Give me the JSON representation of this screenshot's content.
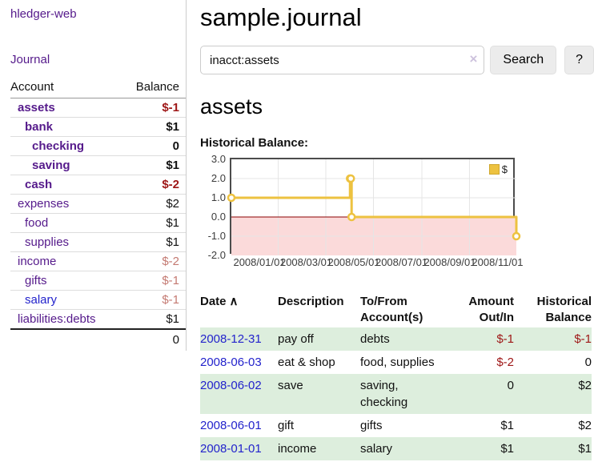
{
  "app": {
    "title": "hledger-web"
  },
  "sidebar": {
    "journal_label": "Journal",
    "accounts_header": {
      "account": "Account",
      "balance": "Balance"
    },
    "accounts": [
      {
        "name": "assets",
        "balance": "$-1"
      },
      {
        "name": "bank",
        "balance": "$1"
      },
      {
        "name": "checking",
        "balance": "0"
      },
      {
        "name": "saving",
        "balance": "$1"
      },
      {
        "name": "cash",
        "balance": "$-2"
      },
      {
        "name": "expenses",
        "balance": "$2"
      },
      {
        "name": "food",
        "balance": "$1"
      },
      {
        "name": "supplies",
        "balance": "$1"
      },
      {
        "name": "income",
        "balance": "$-2"
      },
      {
        "name": "gifts",
        "balance": "$-1"
      },
      {
        "name": "salary",
        "balance": "$-1"
      },
      {
        "name": "liabilities:debts",
        "balance": "$1"
      }
    ],
    "total": "0"
  },
  "main": {
    "title": "sample.journal",
    "search": {
      "value": "inacct:assets",
      "clear_icon": "×",
      "button_label": "Search",
      "help_label": "?"
    },
    "account_heading": "assets",
    "chart_label": "Historical Balance:"
  },
  "chart_data": {
    "type": "line",
    "step": true,
    "title": "Historical Balance:",
    "series": [
      {
        "name": "$",
        "color": "#edc240",
        "points": [
          [
            "2008-01-01",
            1
          ],
          [
            "2008-06-01",
            2
          ],
          [
            "2008-06-02",
            2
          ],
          [
            "2008-06-03",
            0
          ],
          [
            "2008-12-31",
            -1
          ]
        ]
      }
    ],
    "x_ticks": [
      "2008/01/01",
      "2008/03/01",
      "2008/05/01",
      "2008/07/01",
      "2008/09/01",
      "2008/11/01"
    ],
    "y_ticks": [
      "3.0",
      "2.0",
      "1.0",
      "0.0",
      "-1.0",
      "-2.0"
    ],
    "xlim": [
      "2008-01-01",
      "2008-12-31"
    ],
    "ylim": [
      -2,
      3
    ],
    "grid": true,
    "legend": {
      "label": "$",
      "position": "top-right"
    },
    "negative_region": {
      "fill": "#fbdada",
      "zero_line_color": "#8b0000"
    }
  },
  "register_table": {
    "headers": {
      "date": "Date",
      "sort_icon": "∧",
      "description": "Description",
      "accounts": "To/From Account(s)",
      "amount": "Amount Out/In",
      "balance": "Historical Balance"
    },
    "rows": [
      {
        "date": "2008-12-31",
        "description": "pay off",
        "accounts": "debts",
        "amount": "$-1",
        "balance": "$-1"
      },
      {
        "date": "2008-06-03",
        "description": "eat & shop",
        "accounts": "food, supplies",
        "amount": "$-2",
        "balance": "0"
      },
      {
        "date": "2008-06-02",
        "description": "save",
        "accounts": "saving, checking",
        "amount": "0",
        "balance": "$2"
      },
      {
        "date": "2008-06-01",
        "description": "gift",
        "accounts": "gifts",
        "amount": "$1",
        "balance": "$2"
      },
      {
        "date": "2008-01-01",
        "description": "income",
        "accounts": "salary",
        "amount": "$1",
        "balance": "$1"
      }
    ]
  },
  "colors": {
    "link_purple": "#551a8b",
    "link_blue": "#2323cc",
    "negative_strong": "#9e1616",
    "negative_muted": "#c47a72",
    "row_stripe_green": "#ddeedd",
    "series_gold": "#edc240",
    "negative_region_pink": "#fbdada"
  }
}
